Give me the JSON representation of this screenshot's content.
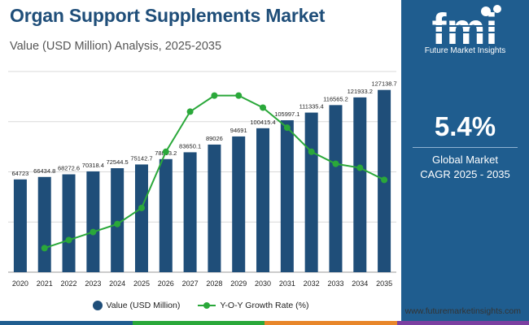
{
  "header": {
    "title": "Organ Support Supplements Market",
    "subtitle": "Value (USD Million) Analysis, 2025-2035"
  },
  "sidebar": {
    "logo_text": "fmi",
    "logo_subtitle": "Future Market Insights",
    "cagr_value": "5.4%",
    "cagr_label_line1": "Global Market",
    "cagr_label_line2": "CAGR 2025 - 2035"
  },
  "footer": {
    "website": "www.futuremarketinsights.com"
  },
  "legend": {
    "bar_label": "Value (USD Million)",
    "line_label": "Y-O-Y Growth Rate (%)"
  },
  "colors": {
    "bar": "#1f4e79",
    "line": "#2aa83a",
    "sidebar": "#1f5d8f",
    "bottom_bar": [
      "#1f5d8f",
      "#2aa83a",
      "#e8862a",
      "#7b3fa0"
    ]
  },
  "chart_data": {
    "type": "bar",
    "categories": [
      "2020",
      "2021",
      "2022",
      "2023",
      "2024",
      "2025",
      "2026",
      "2027",
      "2028",
      "2029",
      "2030",
      "2031",
      "2032",
      "2033",
      "2034",
      "2035"
    ],
    "series": [
      {
        "name": "Value (USD Million)",
        "type": "bar",
        "values": [
          64723,
          66434.8,
          68272.6,
          70318.4,
          72544.5,
          75142.7,
          78893.2,
          83650.1,
          89026,
          94691,
          100415.4,
          105997.1,
          111335.4,
          116565.2,
          121933.2,
          127138.7
        ],
        "labels": [
          "64723",
          "66434.8",
          "68272.6",
          "70318.4",
          "72544.5",
          "75142.7",
          "78893.2",
          "83650.1",
          "89026",
          "94691",
          "100415.4",
          "105997.1",
          "111335.4",
          "116565.2",
          "121933.2",
          "127138.7"
        ]
      },
      {
        "name": "Y-O-Y Growth Rate (%)",
        "type": "line",
        "axis": "secondary",
        "x": [
          "2021",
          "2022",
          "2023",
          "2024",
          "2025",
          "2026",
          "2027",
          "2028",
          "2029",
          "2030",
          "2031",
          "2032",
          "2033",
          "2034",
          "2035"
        ],
        "values": [
          2.6,
          2.8,
          3.0,
          3.2,
          3.6,
          5.0,
          6.0,
          6.4,
          6.4,
          6.1,
          5.6,
          5.0,
          4.7,
          4.6,
          4.3
        ]
      }
    ],
    "title": "Organ Support Supplements Market",
    "xlabel": "",
    "ylabel": "",
    "ylim": [
      0,
      140000
    ],
    "y2lim": [
      2,
      7
    ],
    "grid": true,
    "legend_position": "bottom"
  }
}
